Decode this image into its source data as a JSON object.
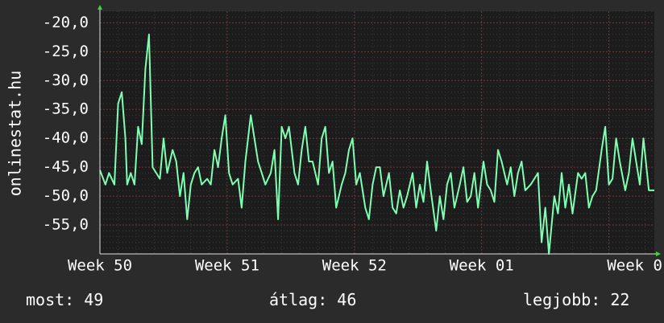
{
  "chart_data": {
    "type": "line",
    "title": "",
    "ylabel": "onlinestat.hu",
    "xlabel": "",
    "ylim": [
      -60,
      -18
    ],
    "y_ticks": [
      "-20,0",
      "-25,0",
      "-30,0",
      "-35,0",
      "-40,0",
      "-45,0",
      "-50,0",
      "-55,0"
    ],
    "y_tick_values": [
      -20,
      -25,
      -30,
      -35,
      -40,
      -45,
      -50,
      -55
    ],
    "x_ticks": [
      "Week 50",
      "Week 51",
      "Week 52",
      "Week 01",
      "Week 0"
    ],
    "x_tick_values": [
      0,
      7,
      14,
      21,
      28
    ],
    "xlim": [
      0,
      30.5
    ],
    "grid": true,
    "series": [
      {
        "color": "#7fffb2",
        "x": [
          0,
          0.3,
          0.5,
          0.8,
          1.0,
          1.2,
          1.4,
          1.5,
          1.7,
          1.9,
          2.1,
          2.3,
          2.5,
          2.7,
          2.9,
          3.1,
          3.3,
          3.5,
          3.7,
          4.0,
          4.2,
          4.4,
          4.6,
          4.8,
          5.0,
          5.2,
          5.4,
          5.6,
          5.9,
          6.1,
          6.3,
          6.5,
          6.7,
          6.9,
          7.1,
          7.3,
          7.6,
          7.8,
          8.0,
          8.3,
          8.5,
          8.7,
          8.9,
          9.1,
          9.4,
          9.6,
          9.8,
          10.0,
          10.2,
          10.4,
          10.7,
          10.9,
          11.1,
          11.3,
          11.5,
          11.7,
          12.0,
          12.2,
          12.4,
          12.6,
          12.8,
          13.0,
          13.3,
          13.5,
          13.7,
          13.9,
          14.1,
          14.3,
          14.6,
          14.8,
          15.0,
          15.2,
          15.4,
          15.6,
          15.9,
          16.1,
          16.3,
          16.5,
          16.7,
          16.9,
          17.2,
          17.4,
          17.6,
          17.8,
          18.0,
          18.2,
          18.5,
          18.7,
          18.9,
          19.1,
          19.3,
          19.5,
          19.8,
          20.0,
          20.2,
          20.4,
          20.6,
          20.8,
          21.1,
          21.3,
          21.5,
          21.7,
          21.9,
          22.1,
          22.4,
          22.6,
          22.8,
          23.0,
          23.2,
          23.4,
          23.7,
          23.9,
          24.1,
          24.3,
          24.5,
          24.7,
          25.0,
          25.2,
          25.4,
          25.6,
          25.8,
          26.0,
          26.3,
          26.5,
          26.7,
          26.9,
          27.1,
          27.3,
          27.6,
          27.8,
          28.0,
          28.2,
          28.4,
          28.6,
          28.9,
          29.1,
          29.3,
          29.5,
          29.7,
          29.9,
          30.2,
          30.5
        ],
        "values": [
          -45.5,
          -48,
          -46,
          -48,
          -34,
          -32,
          -40,
          -48,
          -46,
          -48,
          -38,
          -41,
          -28,
          -22,
          -45,
          -46,
          -47,
          -40,
          -46,
          -42,
          -44,
          -50,
          -46,
          -54,
          -48,
          -46,
          -45,
          -48,
          -47,
          -48,
          -42,
          -45,
          -40,
          -36,
          -46,
          -48,
          -47,
          -52,
          -44,
          -36,
          -40,
          -44,
          -46,
          -48,
          -46,
          -42,
          -54,
          -38,
          -40,
          -38,
          -46,
          -48,
          -42,
          -38,
          -44,
          -44,
          -48,
          -40,
          -38,
          -46,
          -44,
          -52,
          -48,
          -46,
          -42,
          -40,
          -48,
          -46,
          -52,
          -54,
          -48,
          -45,
          -45,
          -50,
          -46,
          -52,
          -53,
          -49,
          -52,
          -50,
          -46,
          -52,
          -48,
          -51,
          -44,
          -49,
          -56,
          -50,
          -54,
          -48,
          -46,
          -52,
          -48,
          -45,
          -51,
          -50,
          -46,
          -52,
          -44,
          -48,
          -49,
          -51,
          -42,
          -44,
          -48,
          -45,
          -50,
          -46,
          -44,
          -49,
          -48,
          -47,
          -46,
          -58,
          -52,
          -60,
          -50,
          -53,
          -46,
          -52,
          -48,
          -53,
          -46,
          -47,
          -46,
          -52,
          -50,
          -49,
          -42,
          -38,
          -48,
          -47,
          -40,
          -44,
          -49,
          -46,
          -40,
          -44,
          -48,
          -40,
          -49,
          -49
        ]
      }
    ]
  },
  "footer": {
    "now": "most: 49",
    "avg": "átlag: 46",
    "best": "legjobb: 22"
  }
}
